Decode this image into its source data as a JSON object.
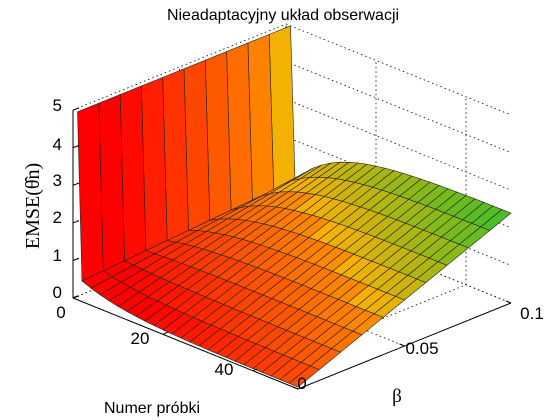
{
  "chart_data": {
    "type": "surface",
    "title": "Nieadaptacyjny układ obserwacji",
    "xlabel": "Numer próbki",
    "ylabel": "β",
    "zlabel": "EMSE(θ̂n)",
    "xlim": [
      0,
      50
    ],
    "ylim": [
      0,
      0.1
    ],
    "zlim": [
      0,
      5
    ],
    "xticks": [
      "0",
      "20",
      "40"
    ],
    "yticks": [
      "0",
      "0.05",
      "0.1"
    ],
    "zticks": [
      "0",
      "1",
      "2",
      "3",
      "4",
      "5"
    ],
    "grid": true,
    "colormap": "autumn-to-green",
    "surface": {
      "n_values": [
        1,
        2,
        4,
        6,
        8,
        10,
        12,
        14,
        16,
        18,
        20,
        22,
        24,
        26,
        28,
        30,
        32,
        34,
        36,
        38,
        40,
        42,
        44,
        46,
        48,
        50
      ],
      "beta_values": [
        0,
        0.01,
        0.02,
        0.03,
        0.04,
        0.05,
        0.06,
        0.07,
        0.08,
        0.09,
        0.1
      ],
      "z_at_n1": 5,
      "z_at_n2_beta0": 0.55,
      "z_at_n2_beta0.1": 0.95,
      "z_at_n50_beta0": 0.05,
      "z_at_n50_beta0.1": 2.4
    }
  },
  "colors": {
    "low": "#ff0000",
    "mid": "#ffb000",
    "high": "#22c030",
    "edge": "#222222",
    "grid": "#000000"
  }
}
